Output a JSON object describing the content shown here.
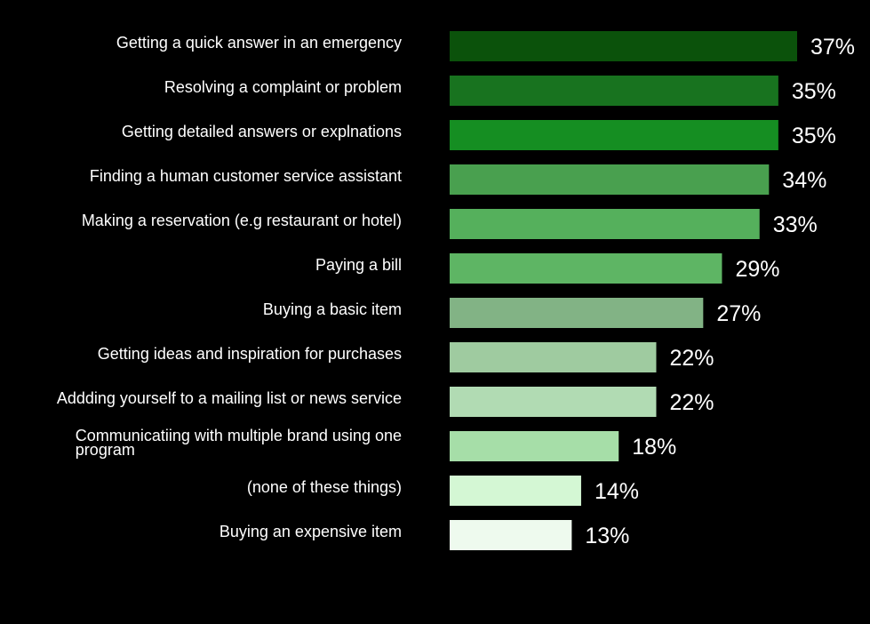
{
  "chart_data": {
    "type": "bar",
    "orientation": "horizontal",
    "title": "",
    "xlabel": "",
    "ylabel": "",
    "grid": false,
    "legend": "none",
    "xlim": [
      0,
      37
    ],
    "categories": [
      "Getting a quick answer in an emergency",
      "Resolving a complaint or problem",
      "Getting detailed answers or explnations",
      "Finding a human customer service assistant",
      "Making a reservation (e.g restaurant or hotel)",
      "Paying a bill",
      "Buying a basic item",
      "Getting ideas and inspiration for purchases",
      "Addding yourself to a mailing list or news service",
      "Communicatiing with multiple brand using one program",
      "(none of these things)",
      "Buying an expensive item"
    ],
    "values": [
      37,
      35,
      35,
      34,
      33,
      29,
      27,
      22,
      22,
      18,
      14,
      13
    ],
    "value_labels": [
      "37%",
      "35%",
      "35%",
      "34%",
      "33%",
      "29%",
      "27%",
      "22%",
      "22%",
      "18%",
      "14%",
      "13%"
    ],
    "colors": [
      "#0b520b",
      "#18731f",
      "#158e22",
      "#49a04f",
      "#55b05c",
      "#5eb564",
      "#82b385",
      "#9fcba0",
      "#b1dbb3",
      "#a6dea8",
      "#d4f7d4",
      "#eefaee"
    ]
  }
}
